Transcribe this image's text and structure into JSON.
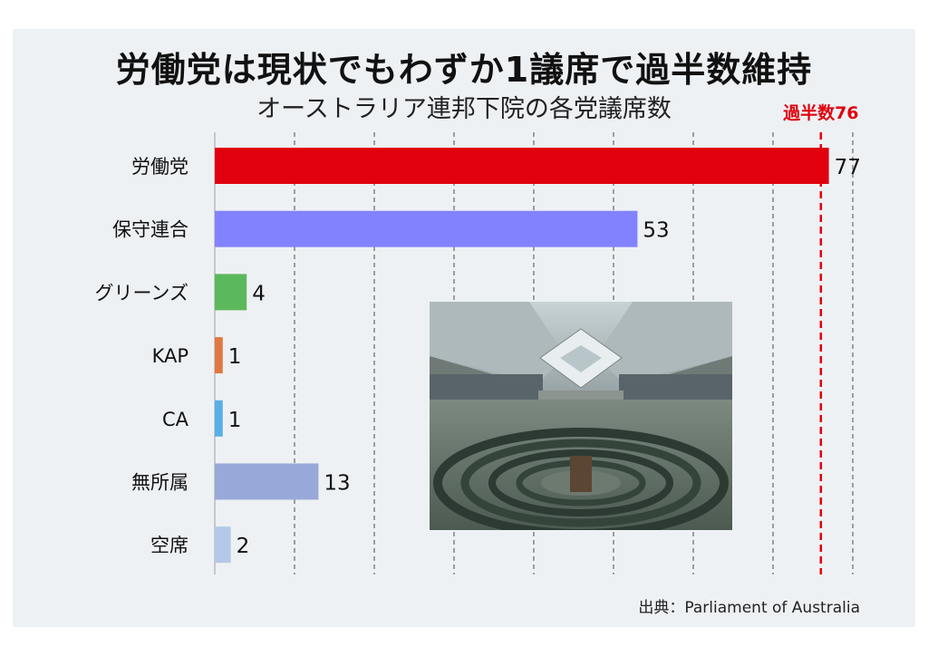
{
  "title": "労働党は現状でもわずか1議席で過半数維持",
  "subtitle": "オーストラリア連邦下院の各党議席数",
  "source": "出典：Parliament of Australia",
  "chart_data": {
    "type": "bar",
    "orientation": "horizontal",
    "title": "労働党は現状でもわずか1議席で過半数維持",
    "subtitle": "オーストラリア連邦下院の各党議席数",
    "categories": [
      "労働党",
      "保守連合",
      "グリーンズ",
      "KAP",
      "CA",
      "無所属",
      "空席"
    ],
    "values": [
      77,
      53,
      4,
      1,
      1,
      13,
      2
    ],
    "colors": [
      "#e0000e",
      "#8282ff",
      "#5cb85c",
      "#e07840",
      "#5aaee8",
      "#98a8d8",
      "#b4c8e8"
    ],
    "xlim": [
      0,
      80
    ],
    "grid": true,
    "grid_step": 10,
    "reference_line": {
      "label": "過半数76",
      "value": 76,
      "color": "#e0000e"
    }
  }
}
